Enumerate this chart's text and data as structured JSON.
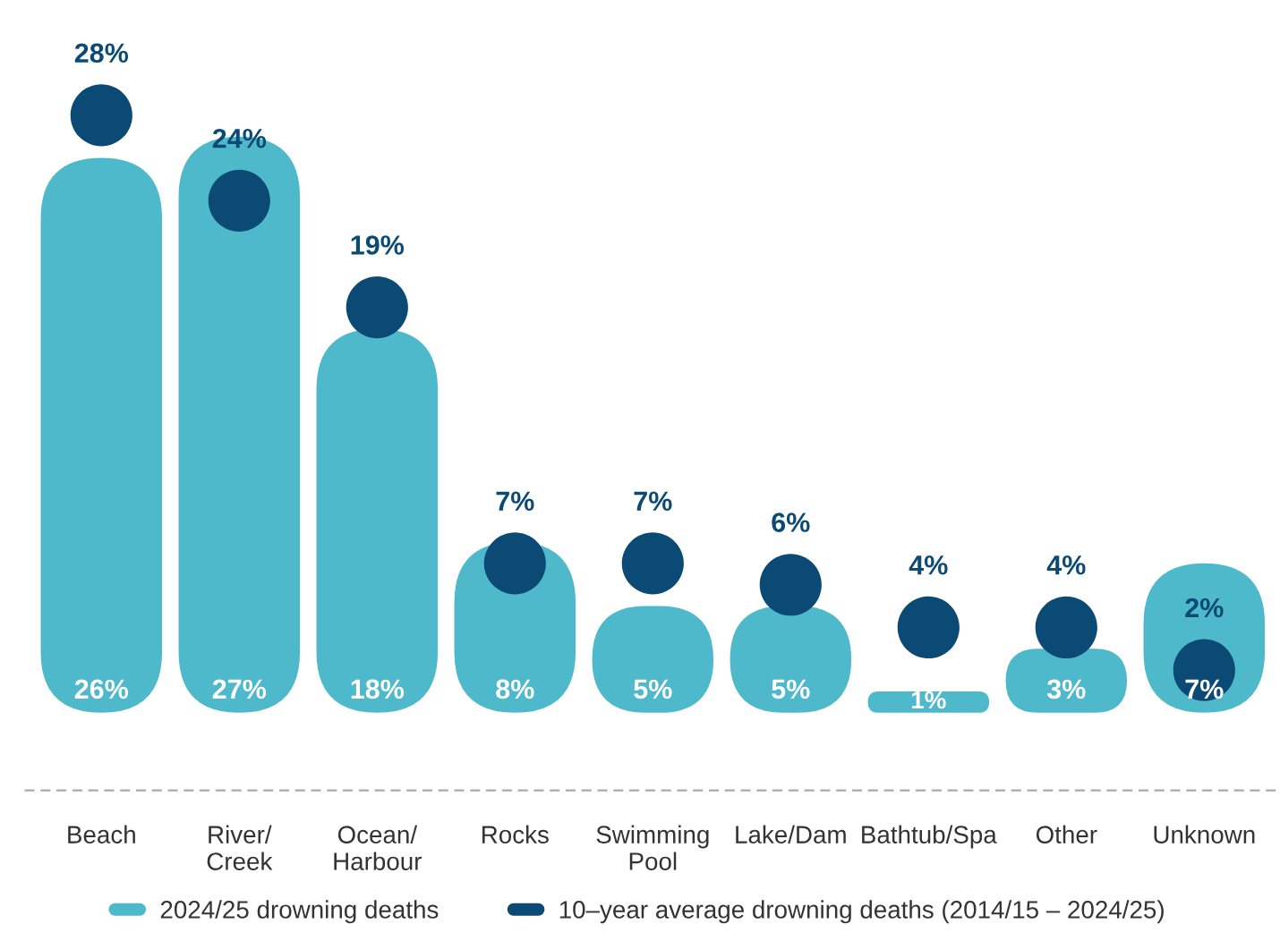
{
  "chart_data": {
    "type": "bar",
    "categories": [
      "Beach",
      "River/\nCreek",
      "Ocean/\nHarbour",
      "Rocks",
      "Swimming\nPool",
      "Lake/Dam",
      "Bathtub/Spa",
      "Other",
      "Unknown"
    ],
    "series": [
      {
        "name": "2024/25 drowning deaths",
        "color": "#4fb9cc",
        "values": [
          26,
          27,
          18,
          8,
          5,
          5,
          1,
          3,
          7
        ],
        "value_labels": [
          "26%",
          "27%",
          "18%",
          "8%",
          "5%",
          "5%",
          "1%",
          "3%",
          "7%"
        ]
      },
      {
        "name": "10–year average drowning deaths (2014/15 – 2024/25)",
        "type": "scatter",
        "color": "#0b4a74",
        "values": [
          28,
          24,
          19,
          7,
          7,
          6,
          4,
          4,
          2
        ],
        "value_labels": [
          "28%",
          "24%",
          "19%",
          "7%",
          "7%",
          "6%",
          "4%",
          "4%",
          "2%"
        ]
      }
    ],
    "tick_labels": "x",
    "legend": "bottom",
    "grid": false
  }
}
